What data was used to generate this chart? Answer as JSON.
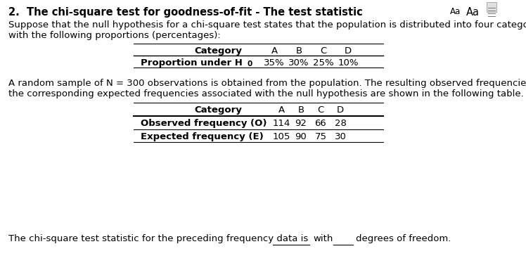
{
  "bg_color": "#ffffff",
  "text_color": "#000000",
  "title": "2.  The chi-square test for goodness-of-fit - The test statistic",
  "para1_line1": "Suppose that the null hypothesis for a chi-square test states that the population is distributed into four categories",
  "para1_line2": "with the following proportions (percentages):",
  "table1_cat_label": "Category",
  "table1_cats": [
    "A",
    "B",
    "C",
    "D"
  ],
  "table1_row_label_pre": "Proportion under H",
  "table1_row_label_sub": "0",
  "table1_vals": [
    "35%",
    "30%",
    "25%",
    "10%"
  ],
  "para2_line1": "A random sample of N = 300 observations is obtained from the population. The resulting observed frequencies and",
  "para2_line2": "the corresponding expected frequencies associated with the null hypothesis are shown in the following table.",
  "table2_cat_label": "Category",
  "table2_cats": [
    "A",
    "B",
    "C",
    "D"
  ],
  "table2_row1_label": "Observed frequency (O)",
  "table2_row1_vals": [
    "114",
    "92",
    "66",
    "28"
  ],
  "table2_row2_label": "Expected frequency (E)",
  "table2_row2_vals": [
    "105",
    "90",
    "75",
    "30"
  ],
  "footer_pre": "The chi-square test statistic for the preceding frequency data is",
  "footer_mid": "with",
  "footer_post": "degrees of freedom.",
  "font_size_title": 10.5,
  "font_size_body": 9.5,
  "font_size_small": 7.5
}
